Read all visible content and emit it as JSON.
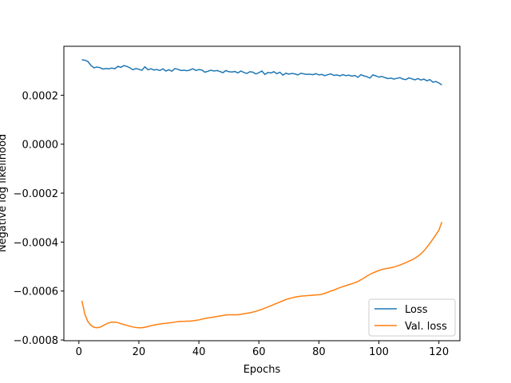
{
  "chart_data": {
    "type": "line",
    "xlabel": "Epochs",
    "ylabel": "Negative log likelihood",
    "x": [
      1,
      2,
      3,
      4,
      5,
      6,
      7,
      8,
      9,
      10,
      11,
      12,
      13,
      14,
      15,
      16,
      17,
      18,
      19,
      20,
      21,
      22,
      23,
      24,
      25,
      26,
      27,
      28,
      29,
      30,
      31,
      32,
      33,
      34,
      35,
      36,
      37,
      38,
      39,
      40,
      41,
      42,
      43,
      44,
      45,
      46,
      47,
      48,
      49,
      50,
      51,
      52,
      53,
      54,
      55,
      56,
      57,
      58,
      59,
      60,
      61,
      62,
      63,
      64,
      65,
      66,
      67,
      68,
      69,
      70,
      71,
      72,
      73,
      74,
      75,
      76,
      77,
      78,
      79,
      80,
      81,
      82,
      83,
      84,
      85,
      86,
      87,
      88,
      89,
      90,
      91,
      92,
      93,
      94,
      95,
      96,
      97,
      98,
      99,
      100,
      101,
      102,
      103,
      104,
      105,
      106,
      107,
      108,
      109,
      110,
      111,
      112,
      113,
      114,
      115,
      116,
      117,
      118,
      119,
      120,
      121
    ],
    "series": [
      {
        "name": "Loss",
        "color": "#1f77b4",
        "values": [
          0.000345,
          0.000343,
          0.000338,
          0.000322,
          0.000312,
          0.000315,
          0.000313,
          0.000307,
          0.000309,
          0.000308,
          0.000311,
          0.000308,
          0.000318,
          0.000314,
          0.000321,
          0.000318,
          0.000312,
          0.000304,
          0.000309,
          0.000306,
          0.000302,
          0.000316,
          0.000304,
          0.000308,
          0.000303,
          0.000305,
          0.000301,
          0.000308,
          0.000299,
          0.000304,
          0.000298,
          0.000309,
          0.000306,
          0.000301,
          0.000302,
          0.0003,
          0.000303,
          0.000308,
          0.000301,
          0.000305,
          0.000303,
          0.000294,
          0.000298,
          0.000302,
          0.000299,
          0.000301,
          0.000297,
          0.000292,
          0.000301,
          0.000296,
          0.000295,
          0.000297,
          0.000291,
          0.000299,
          0.000293,
          0.000289,
          0.000296,
          0.000294,
          0.000287,
          0.000292,
          0.000299,
          0.000285,
          0.000293,
          0.000291,
          0.000296,
          0.000288,
          0.000294,
          0.000282,
          0.00029,
          0.000286,
          0.000289,
          0.000287,
          0.000283,
          0.00029,
          0.000287,
          0.000285,
          0.000286,
          0.000284,
          0.000288,
          0.000283,
          0.000285,
          0.00028,
          0.000284,
          0.000287,
          0.000281,
          0.000283,
          0.000279,
          0.000284,
          0.00028,
          0.000282,
          0.000278,
          0.000281,
          0.000273,
          0.000284,
          0.000279,
          0.000276,
          0.00027,
          0.000283,
          0.000279,
          0.000274,
          0.000277,
          0.000272,
          0.000268,
          0.00027,
          0.000266,
          0.000269,
          0.000272,
          0.000266,
          0.000264,
          0.000271,
          0.000267,
          0.000263,
          0.000268,
          0.000262,
          0.000266,
          0.000259,
          0.000264,
          0.000253,
          0.000256,
          0.00025,
          0.000242
        ]
      },
      {
        "name": "Val. loss",
        "color": "#ff7f0e",
        "values": [
          -0.00064,
          -0.000695,
          -0.000725,
          -0.00074,
          -0.000748,
          -0.00075,
          -0.000748,
          -0.000742,
          -0.000735,
          -0.00073,
          -0.000727,
          -0.000727,
          -0.000729,
          -0.000733,
          -0.000737,
          -0.00074,
          -0.000744,
          -0.000747,
          -0.000749,
          -0.00075,
          -0.00075,
          -0.000748,
          -0.000745,
          -0.000742,
          -0.000739,
          -0.000737,
          -0.000735,
          -0.000733,
          -0.000732,
          -0.00073,
          -0.000729,
          -0.000727,
          -0.000725,
          -0.000724,
          -0.000724,
          -0.000723,
          -0.000723,
          -0.000722,
          -0.00072,
          -0.000718,
          -0.000715,
          -0.000712,
          -0.00071,
          -0.000708,
          -0.000706,
          -0.000704,
          -0.000702,
          -0.0007,
          -0.000698,
          -0.000697,
          -0.000697,
          -0.000697,
          -0.000697,
          -0.000695,
          -0.000693,
          -0.000691,
          -0.000689,
          -0.000686,
          -0.000683,
          -0.000679,
          -0.000675,
          -0.00067,
          -0.000665,
          -0.00066,
          -0.000655,
          -0.00065,
          -0.000645,
          -0.00064,
          -0.000635,
          -0.000631,
          -0.000628,
          -0.000625,
          -0.000623,
          -0.000621,
          -0.00062,
          -0.000619,
          -0.000618,
          -0.000617,
          -0.000616,
          -0.000615,
          -0.000613,
          -0.000609,
          -0.000605,
          -0.0006,
          -0.000596,
          -0.000591,
          -0.000586,
          -0.000582,
          -0.000578,
          -0.000574,
          -0.00057,
          -0.000566,
          -0.000561,
          -0.000554,
          -0.000547,
          -0.000539,
          -0.000532,
          -0.000526,
          -0.000521,
          -0.000516,
          -0.000512,
          -0.000509,
          -0.000507,
          -0.000505,
          -0.000502,
          -0.000498,
          -0.000494,
          -0.000489,
          -0.000484,
          -0.000478,
          -0.000473,
          -0.000466,
          -0.000458,
          -0.000448,
          -0.000436,
          -0.000421,
          -0.000405,
          -0.000388,
          -0.00037,
          -0.000351,
          -0.000318
        ]
      }
    ],
    "xlim": [
      -5,
      127
    ],
    "ylim": [
      -0.000803,
      0.0004
    ],
    "xticks": [
      0,
      20,
      40,
      60,
      80,
      100,
      120
    ],
    "yticks": [
      {
        "value": -0.0008,
        "label": "−0.0008"
      },
      {
        "value": -0.0006,
        "label": "−0.0006"
      },
      {
        "value": -0.0004,
        "label": "−0.0004"
      },
      {
        "value": -0.0002,
        "label": "−0.0002"
      },
      {
        "value": 0,
        "label": "0.0000"
      },
      0.0002
    ],
    "legend": "lower right"
  }
}
